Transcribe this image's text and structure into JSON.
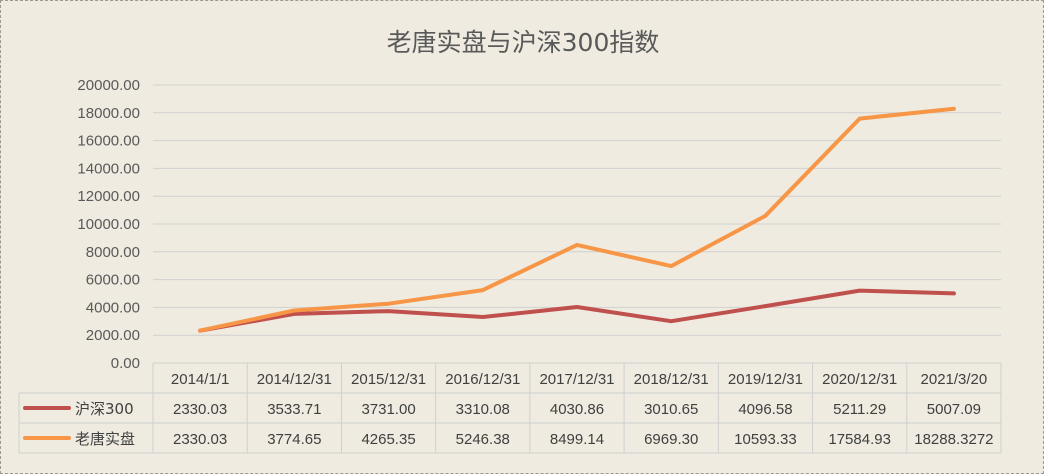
{
  "chart_data": {
    "type": "line",
    "title": "老唐实盘与沪深300指数",
    "categories": [
      "2014/1/1",
      "2014/12/31",
      "2015/12/31",
      "2016/12/31",
      "2017/12/31",
      "2018/12/31",
      "2019/12/31",
      "2020/12/31",
      "2021/3/20"
    ],
    "ylim": [
      0,
      20000
    ],
    "yticks": [
      "0.00",
      "2000.00",
      "4000.00",
      "6000.00",
      "8000.00",
      "10000.00",
      "12000.00",
      "14000.00",
      "16000.00",
      "18000.00",
      "20000.00"
    ],
    "grid": true,
    "legend": "data-table",
    "series": [
      {
        "name": "沪深300",
        "color": "#c0504d",
        "values": [
          2330.03,
          3533.71,
          3731.0,
          3310.08,
          4030.86,
          3010.65,
          4096.58,
          5211.29,
          5007.09
        ],
        "labels": [
          "2330.03",
          "3533.71",
          "3731.00",
          "3310.08",
          "4030.86",
          "3010.65",
          "4096.58",
          "5211.29",
          "5007.09"
        ]
      },
      {
        "name": "老唐实盘",
        "color": "#f79646",
        "values": [
          2330.03,
          3774.65,
          4265.35,
          5246.38,
          8499.14,
          6969.3,
          10593.33,
          17584.93,
          18288.3272
        ],
        "labels": [
          "2330.03",
          "3774.65",
          "4265.35",
          "5246.38",
          "8499.14",
          "6969.30",
          "10593.33",
          "17584.93",
          "18288.3272"
        ]
      }
    ]
  }
}
